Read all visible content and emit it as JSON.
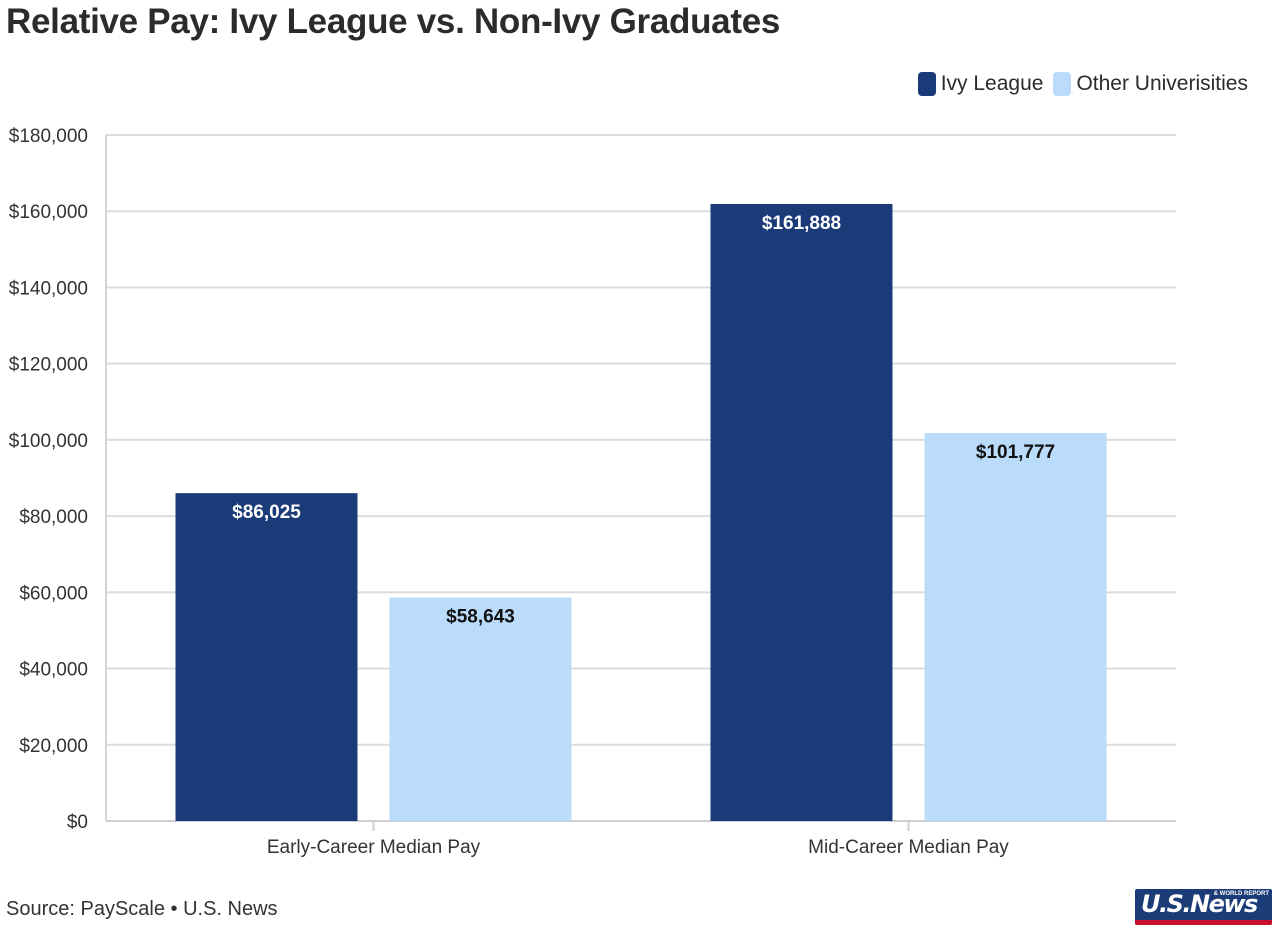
{
  "title": "Relative Pay: Ivy League vs. Non-Ivy Graduates",
  "legend": [
    {
      "label": "Ivy League",
      "color": "#1b3b78"
    },
    {
      "label": "Other Univerisities",
      "color": "#badcfa"
    }
  ],
  "source": "Source: PayScale • U.S. News",
  "logo": {
    "text": "U.S.News",
    "tag": "& WORLD REPORT"
  },
  "chart_data": {
    "type": "bar",
    "title": "Relative Pay: Ivy League vs. Non-Ivy Graduates",
    "xlabel": "",
    "ylabel": "",
    "categories": [
      "Early-Career Median Pay",
      "Mid-Career Median Pay"
    ],
    "series": [
      {
        "name": "Ivy League",
        "color": "#1b3b78",
        "label_color": "#ffffff",
        "values": [
          86025,
          161888
        ]
      },
      {
        "name": "Other Univerisities",
        "color": "#badcfa",
        "label_color": "#111111",
        "values": [
          58643,
          101777
        ]
      }
    ],
    "ylim": [
      0,
      180000
    ],
    "yticks": [
      0,
      20000,
      40000,
      60000,
      80000,
      100000,
      120000,
      140000,
      160000,
      180000
    ],
    "grid": true,
    "legend_position": "top-right"
  }
}
